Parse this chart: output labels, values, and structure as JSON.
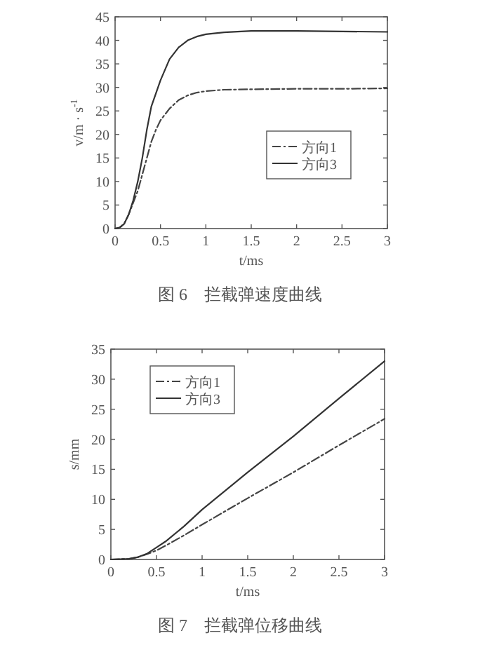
{
  "chart_data": [
    {
      "type": "line",
      "title": "图 6　拦截弹速度曲线",
      "xlabel": "t/ms",
      "ylabel": "v/m · s$^{-1}$",
      "xlim": [
        0,
        3
      ],
      "ylim": [
        0,
        45
      ],
      "xticks": [
        0,
        0.5,
        1,
        1.5,
        2,
        2.5,
        3
      ],
      "yticks": [
        0,
        5,
        10,
        15,
        20,
        25,
        30,
        35,
        40,
        45
      ],
      "legend": "center right",
      "grid": false,
      "series": [
        {
          "name": "方向1",
          "color": "#444444",
          "line_style": "dashdot",
          "x": [
            0,
            0.05,
            0.1,
            0.15,
            0.2,
            0.25,
            0.3,
            0.35,
            0.4,
            0.45,
            0.5,
            0.6,
            0.7,
            0.8,
            0.9,
            1,
            1.2,
            1.5,
            2,
            2.5,
            3
          ],
          "values": [
            0,
            0.2,
            1,
            3,
            5.5,
            8,
            11.5,
            15,
            18.5,
            21,
            23,
            25.5,
            27.3,
            28.3,
            28.9,
            29.2,
            29.5,
            29.6,
            29.7,
            29.7,
            29.8
          ]
        },
        {
          "name": "方向3",
          "color": "#333333",
          "line_style": "solid",
          "x": [
            0,
            0.05,
            0.1,
            0.15,
            0.2,
            0.25,
            0.3,
            0.35,
            0.4,
            0.5,
            0.6,
            0.7,
            0.8,
            0.9,
            1,
            1.2,
            1.5,
            2,
            2.5,
            3
          ],
          "values": [
            0,
            0.2,
            1,
            3,
            6,
            10,
            15,
            21,
            26,
            31.5,
            36,
            38.5,
            40,
            40.8,
            41.3,
            41.7,
            42,
            42,
            41.9,
            41.8
          ]
        }
      ]
    },
    {
      "type": "line",
      "title": "图 7　拦截弹位移曲线",
      "xlabel": "t/ms",
      "ylabel": "s/mm",
      "xlim": [
        0,
        3
      ],
      "ylim": [
        0,
        35
      ],
      "xticks": [
        0,
        0.5,
        1,
        1.5,
        2,
        2.5,
        3
      ],
      "yticks": [
        0,
        5,
        10,
        15,
        20,
        25,
        30,
        35
      ],
      "legend": "top left",
      "grid": false,
      "series": [
        {
          "name": "方向1",
          "color": "#444444",
          "line_style": "dashdot",
          "x": [
            0,
            0.2,
            0.3,
            0.4,
            0.5,
            0.6,
            0.8,
            1,
            1.5,
            2,
            2.5,
            3
          ],
          "values": [
            0,
            0.1,
            0.4,
            0.9,
            1.5,
            2.3,
            4,
            5.8,
            10.2,
            14.5,
            19,
            23.4
          ]
        },
        {
          "name": "方向3",
          "color": "#333333",
          "line_style": "solid",
          "x": [
            0,
            0.2,
            0.3,
            0.4,
            0.5,
            0.6,
            0.8,
            1,
            1.5,
            2,
            2.5,
            3
          ],
          "values": [
            0,
            0.1,
            0.4,
            1,
            2,
            3,
            5.5,
            8.3,
            14.5,
            20.5,
            26.8,
            33
          ]
        }
      ]
    }
  ]
}
